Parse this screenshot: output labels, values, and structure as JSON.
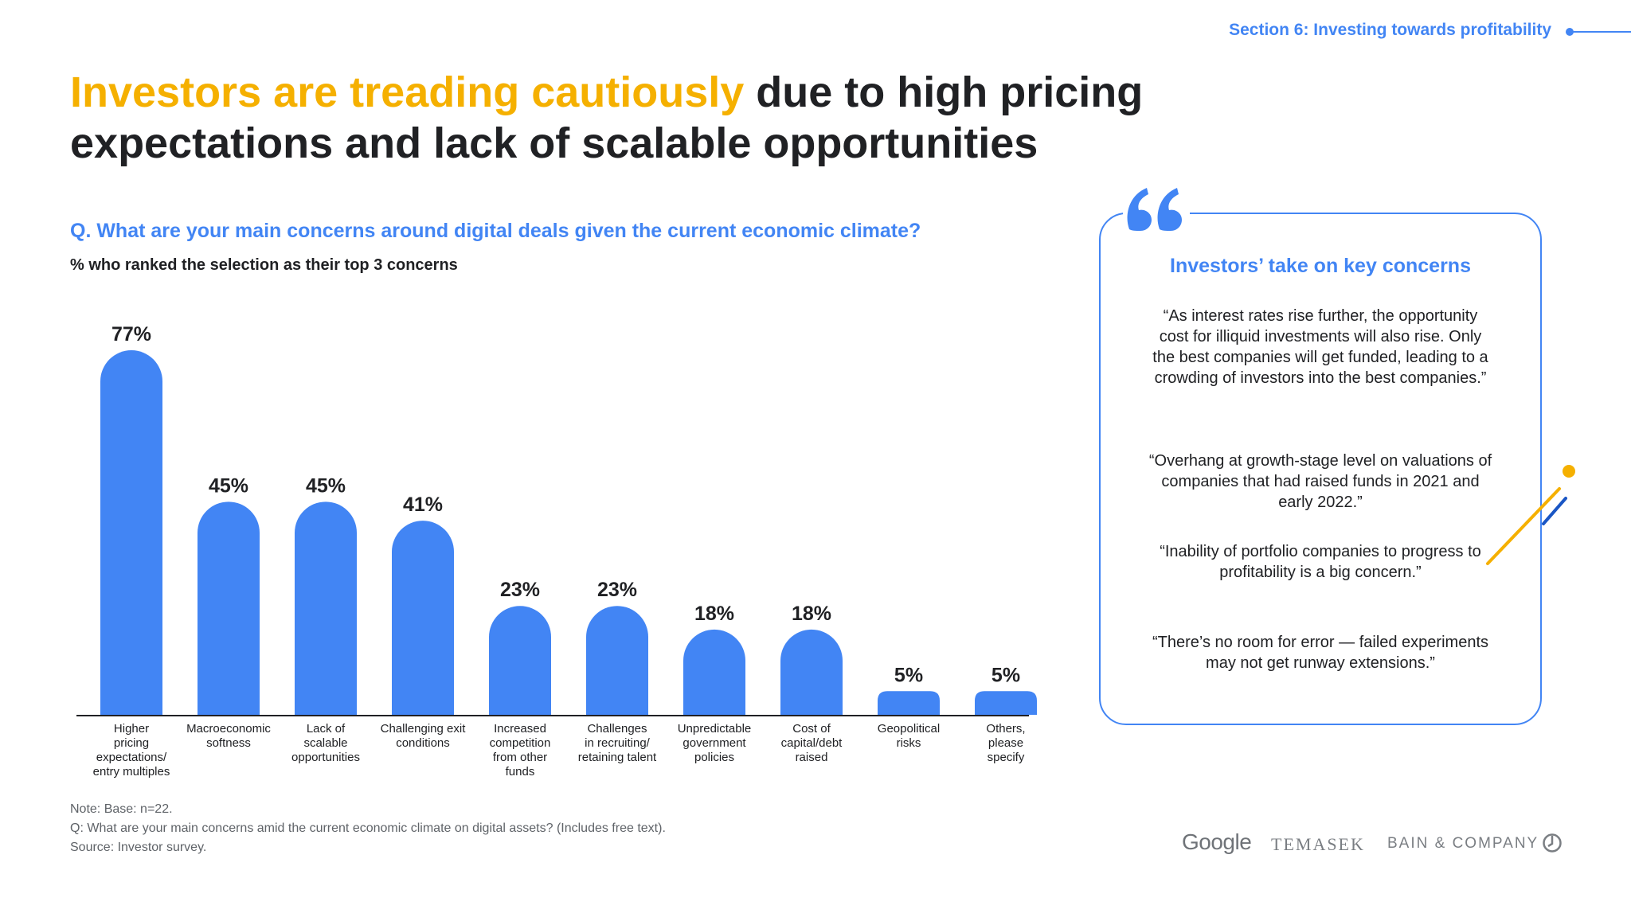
{
  "header": {
    "section": "Section 6: Investing towards profitability",
    "title_highlight": "Investors are treading cautiously",
    "title_rest": " due to high pricing expectations and lack of scalable opportunities"
  },
  "question": "Q. What are your main concerns around digital deals given the current economic climate?",
  "subtitle": "% who ranked the selection as their top 3 concerns",
  "chart_data": {
    "type": "bar",
    "unit": "%",
    "categories": [
      [
        "Higher",
        "pricing",
        "expectations/",
        "entry multiples"
      ],
      [
        "Macroeconomic",
        "softness"
      ],
      [
        "Lack of",
        "scalable",
        "opportunities"
      ],
      [
        "Challenging exit",
        "conditions"
      ],
      [
        "Increased",
        "competition",
        "from other",
        "funds"
      ],
      [
        "Challenges",
        "in recruiting/",
        "retaining talent"
      ],
      [
        "Unpredictable",
        "government",
        "policies"
      ],
      [
        "Cost of",
        "capital/debt",
        "raised"
      ],
      [
        "Geopolitical",
        "risks"
      ],
      [
        "Others,",
        "please",
        "specify"
      ]
    ],
    "values": [
      77,
      45,
      45,
      41,
      23,
      23,
      18,
      18,
      5,
      5
    ],
    "value_labels": [
      "77%",
      "45%",
      "45%",
      "41%",
      "23%",
      "23%",
      "18%",
      "18%",
      "5%",
      "5%"
    ],
    "ylim": [
      0,
      80
    ],
    "grid": false,
    "bar_color": "#4285f4"
  },
  "notes": [
    "Note: Base: n=22.",
    "Q: What are your main concerns amid the current economic climate on digital assets? (Includes free text).",
    "Source: Investor survey."
  ],
  "quotes": {
    "heading": "Investors’ take on key concerns",
    "items": [
      "“As interest rates rise further, the opportunity cost for illiquid investments will also rise. Only the best companies will get funded, leading to a crowding of investors into the best companies.”",
      "“Overhang at growth-stage level on valuations of companies that had raised funds in 2021 and early 2022.”",
      "“Inability of portfolio companies to progress to profitability is a big concern.”",
      "“There’s no room for error — failed experiments may not get runway extensions.”"
    ]
  },
  "logos": {
    "google": "Google",
    "temasek": "TEMASEK",
    "bain": "BAIN & COMPANY"
  },
  "colors": {
    "accent_blue": "#4285f4",
    "highlight_yellow": "#f5b000",
    "text_dark": "#202124"
  }
}
